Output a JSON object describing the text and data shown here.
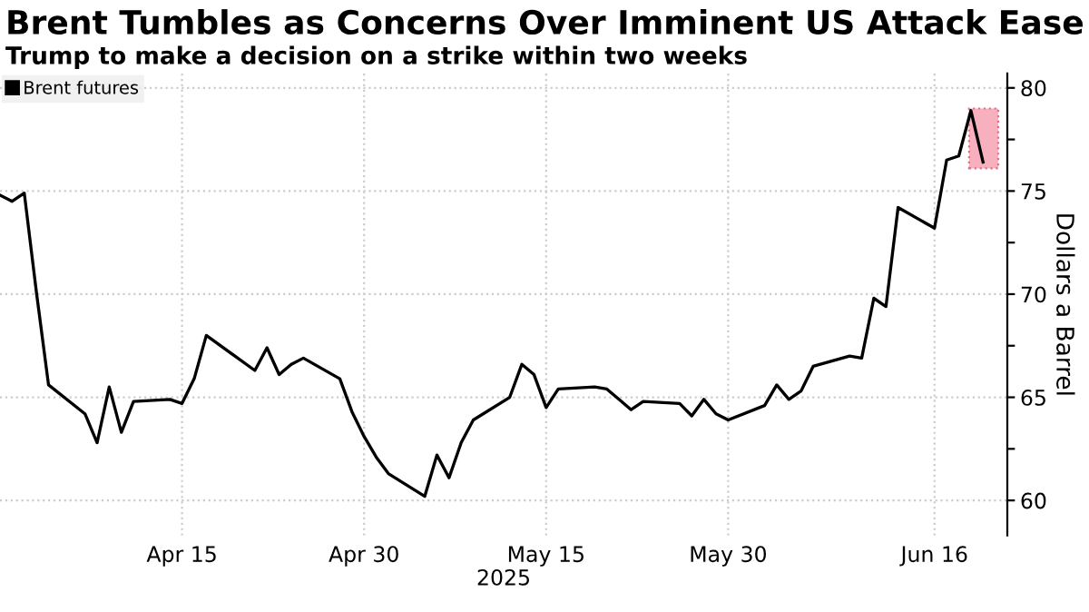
{
  "chart_data": {
    "type": "line",
    "title": "Brent Tumbles as Concerns Over Imminent US Attack Ease",
    "subtitle": "Trump to make a decision on a strike within two weeks",
    "xlabel": "2025",
    "ylabel": "Dollars a Barrel",
    "x": [
      "2025-03-31",
      "2025-04-01",
      "2025-04-02",
      "2025-04-03",
      "2025-04-04",
      "2025-04-07",
      "2025-04-08",
      "2025-04-09",
      "2025-04-10",
      "2025-04-11",
      "2025-04-14",
      "2025-04-15",
      "2025-04-16",
      "2025-04-17",
      "2025-04-21",
      "2025-04-22",
      "2025-04-23",
      "2025-04-24",
      "2025-04-25",
      "2025-04-28",
      "2025-04-29",
      "2025-04-30",
      "2025-05-01",
      "2025-05-02",
      "2025-05-05",
      "2025-05-06",
      "2025-05-07",
      "2025-05-08",
      "2025-05-09",
      "2025-05-12",
      "2025-05-13",
      "2025-05-14",
      "2025-05-15",
      "2025-05-16",
      "2025-05-19",
      "2025-05-20",
      "2025-05-21",
      "2025-05-22",
      "2025-05-23",
      "2025-05-26",
      "2025-05-27",
      "2025-05-28",
      "2025-05-29",
      "2025-05-30",
      "2025-06-02",
      "2025-06-03",
      "2025-06-04",
      "2025-06-05",
      "2025-06-06",
      "2025-06-09",
      "2025-06-10",
      "2025-06-11",
      "2025-06-12",
      "2025-06-13",
      "2025-06-16",
      "2025-06-17",
      "2025-06-18",
      "2025-06-19",
      "2025-06-20"
    ],
    "series": [
      {
        "name": "Brent futures",
        "color": "#000000",
        "values": [
          74.8,
          74.5,
          74.9,
          70.1,
          65.6,
          64.2,
          62.8,
          65.5,
          63.3,
          64.8,
          64.9,
          64.7,
          65.9,
          68.0,
          66.3,
          67.4,
          66.1,
          66.6,
          66.9,
          65.9,
          64.3,
          63.1,
          62.1,
          61.3,
          60.2,
          62.2,
          61.1,
          62.8,
          63.9,
          65.0,
          66.6,
          66.1,
          64.5,
          65.4,
          65.5,
          65.4,
          64.9,
          64.4,
          64.8,
          64.7,
          64.1,
          64.9,
          64.2,
          63.9,
          64.6,
          65.6,
          64.9,
          65.3,
          66.5,
          67.0,
          66.9,
          69.8,
          69.4,
          74.2,
          73.2,
          76.5,
          76.7,
          78.9,
          76.4
        ]
      }
    ],
    "xlim": [
      "2025-03-31",
      "2025-06-22"
    ],
    "xticks": [
      {
        "value": "2025-04-15",
        "label": "Apr 15"
      },
      {
        "value": "2025-04-30",
        "label": "Apr 30"
      },
      {
        "value": "2025-05-15",
        "label": "May 15"
      },
      {
        "value": "2025-05-30",
        "label": "May 30"
      },
      {
        "value": "2025-06-16",
        "label": "Jun 16"
      }
    ],
    "ylim": [
      58.3,
      80.7
    ],
    "yticks": [
      60,
      {
        "value": 62.5,
        "label": null
      },
      65,
      {
        "value": 67.5,
        "label": null
      },
      70,
      {
        "value": 72.5,
        "label": null
      },
      75,
      {
        "value": 77.5,
        "label": null
      },
      80
    ],
    "grid": true,
    "legend": "top left",
    "marker": "none",
    "line_style": "solid"
  }
}
